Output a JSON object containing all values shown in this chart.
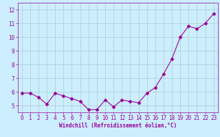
{
  "x": [
    0,
    1,
    2,
    3,
    4,
    5,
    6,
    7,
    8,
    9,
    10,
    11,
    12,
    13,
    14,
    15,
    16,
    17,
    18,
    19,
    20,
    21,
    22,
    23
  ],
  "y": [
    5.9,
    5.9,
    5.6,
    5.1,
    5.9,
    5.7,
    5.5,
    5.3,
    4.7,
    4.7,
    5.4,
    4.9,
    5.4,
    5.3,
    5.2,
    5.9,
    6.3,
    7.3,
    8.4,
    10.0,
    10.8,
    10.6,
    11.0,
    11.7
  ],
  "line_color": "#990099",
  "marker": "D",
  "markersize": 2.5,
  "linewidth": 0.8,
  "background_color": "#cceeff",
  "grid_color": "#aacccc",
  "xlabel": "Windchill (Refroidissement éolien,°C)",
  "xlabel_fontsize": 5.5,
  "tick_fontsize": 5.5,
  "ylim": [
    4.5,
    12.5
  ],
  "xlim": [
    -0.5,
    23.5
  ],
  "yticks": [
    5,
    6,
    7,
    8,
    9,
    10,
    11,
    12
  ],
  "xticks": [
    0,
    1,
    2,
    3,
    4,
    5,
    6,
    7,
    8,
    9,
    10,
    11,
    12,
    13,
    14,
    15,
    16,
    17,
    18,
    19,
    20,
    21,
    22,
    23
  ]
}
